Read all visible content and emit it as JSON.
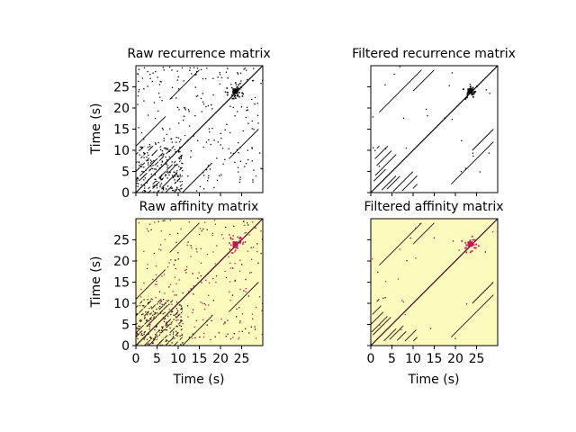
{
  "chart_data": [
    {
      "type": "heatmap",
      "title": "Raw recurrence matrix",
      "xlabel": "",
      "ylabel": "Time (s)",
      "xlim": [
        0,
        30
      ],
      "ylim": [
        0,
        30
      ],
      "xticks": [
        0,
        5,
        10,
        15,
        20,
        25
      ],
      "yticks": [
        0,
        5,
        10,
        15,
        20,
        25
      ],
      "show_xtick_labels": false,
      "show_ytick_labels": true,
      "colors": {
        "background": "#ffffff",
        "mark": "#000000"
      },
      "variant": "raw"
    },
    {
      "type": "heatmap",
      "title": "Filtered recurrence matrix",
      "xlabel": "",
      "ylabel": "",
      "xlim": [
        0,
        30
      ],
      "ylim": [
        0,
        30
      ],
      "xticks": [
        0,
        5,
        10,
        15,
        20,
        25
      ],
      "yticks": [
        0,
        5,
        10,
        15,
        20,
        25
      ],
      "show_xtick_labels": false,
      "show_ytick_labels": false,
      "colors": {
        "background": "#ffffff",
        "mark": "#000000"
      },
      "variant": "filtered"
    },
    {
      "type": "heatmap",
      "title": "Raw affinity matrix",
      "xlabel": "Time (s)",
      "ylabel": "Time (s)",
      "xlim": [
        0,
        30
      ],
      "ylim": [
        0,
        30
      ],
      "xticks": [
        0,
        5,
        10,
        15,
        20,
        25
      ],
      "yticks": [
        0,
        5,
        10,
        15,
        20,
        25
      ],
      "show_xtick_labels": true,
      "show_ytick_labels": true,
      "colors": {
        "background": "#fdfabd",
        "mark": "#2a0d1a",
        "accent": "#c0175a"
      },
      "variant": "raw"
    },
    {
      "type": "heatmap",
      "title": "Filtered affinity matrix",
      "xlabel": "Time (s)",
      "ylabel": "",
      "xlim": [
        0,
        30
      ],
      "ylim": [
        0,
        30
      ],
      "xticks": [
        0,
        5,
        10,
        15,
        20,
        25
      ],
      "yticks": [
        0,
        5,
        10,
        15,
        20,
        25
      ],
      "show_xtick_labels": true,
      "show_ytick_labels": false,
      "colors": {
        "background": "#fdfabd",
        "mark": "#2a0d1a",
        "accent": "#c0175a"
      },
      "variant": "filtered"
    }
  ]
}
